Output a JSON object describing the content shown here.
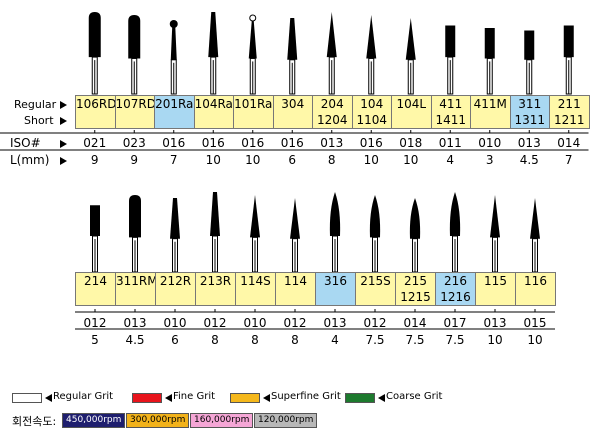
{
  "row_labels": {
    "regular": "Regular",
    "short": "Short",
    "iso": "ISO#",
    "length": "L(mm)"
  },
  "rows": [
    {
      "items": [
        {
          "codes": [
            "106RD"
          ],
          "iso": "021",
          "length": 9,
          "highlight": false
        },
        {
          "codes": [
            "107RD"
          ],
          "iso": "023",
          "length": 9,
          "highlight": false
        },
        {
          "codes": [
            "201Ra"
          ],
          "iso": "016",
          "length": 7,
          "highlight": true
        },
        {
          "codes": [
            "104Ra"
          ],
          "iso": "016",
          "length": 10,
          "highlight": false
        },
        {
          "codes": [
            "101Ra"
          ],
          "iso": "016",
          "length": 10,
          "highlight": false
        },
        {
          "codes": [
            "304"
          ],
          "iso": "016",
          "length": 6,
          "highlight": false
        },
        {
          "codes": [
            "204",
            "1204"
          ],
          "iso": "013",
          "length": 8,
          "highlight": false
        },
        {
          "codes": [
            "104",
            "1104"
          ],
          "iso": "016",
          "length": 10,
          "highlight": false
        },
        {
          "codes": [
            "104L"
          ],
          "iso": "018",
          "length": 10,
          "highlight": false
        },
        {
          "codes": [
            "411",
            "1411"
          ],
          "iso": "011",
          "length": 4,
          "highlight": false
        },
        {
          "codes": [
            "411M"
          ],
          "iso": "010",
          "length": 3,
          "highlight": false
        },
        {
          "codes": [
            "311",
            "1311"
          ],
          "iso": "013",
          "length": 4.5,
          "highlight": true
        },
        {
          "codes": [
            "211",
            "1211"
          ],
          "iso": "014",
          "length": 7,
          "highlight": false
        }
      ]
    },
    {
      "items": [
        {
          "codes": [
            "214"
          ],
          "iso": "012",
          "length": 5,
          "highlight": false
        },
        {
          "codes": [
            "311RM"
          ],
          "iso": "013",
          "length": 4.5,
          "highlight": false
        },
        {
          "codes": [
            "212R"
          ],
          "iso": "010",
          "length": 6,
          "highlight": false
        },
        {
          "codes": [
            "213R"
          ],
          "iso": "012",
          "length": 8,
          "highlight": false
        },
        {
          "codes": [
            "114S"
          ],
          "iso": "010",
          "length": 8,
          "highlight": false
        },
        {
          "codes": [
            "114"
          ],
          "iso": "012",
          "length": 8,
          "highlight": false
        },
        {
          "codes": [
            "316"
          ],
          "iso": "013",
          "length": 4,
          "highlight": true
        },
        {
          "codes": [
            "215S"
          ],
          "iso": "012",
          "length": 7.5,
          "highlight": false
        },
        {
          "codes": [
            "215",
            "1215"
          ],
          "iso": "014",
          "length": 7.5,
          "highlight": false
        },
        {
          "codes": [
            "216",
            "1216"
          ],
          "iso": "017",
          "length": 7.5,
          "highlight": true
        },
        {
          "codes": [
            "115"
          ],
          "iso": "013",
          "length": 10,
          "highlight": false
        },
        {
          "codes": [
            "116"
          ],
          "iso": "015",
          "length": 10,
          "highlight": false
        }
      ]
    }
  ],
  "legend": [
    {
      "label": "Regular Grit",
      "color": "#ffffff"
    },
    {
      "label": "Fine Grit",
      "color": "#e8141c"
    },
    {
      "label": "Superfine Grit",
      "color": "#f5b81c"
    },
    {
      "label": "Coarse Grit",
      "color": "#1d7a2e"
    }
  ],
  "speed": {
    "label": "회전속도:",
    "items": [
      {
        "label": "450,000rpm",
        "color": "#1e1e6e",
        "text_color": "#ffffff"
      },
      {
        "label": "300,000rpm",
        "color": "#f2b21a",
        "text_color": "#000000"
      },
      {
        "label": "160,000rpm",
        "color": "#f5a6d6",
        "text_color": "#000000"
      },
      {
        "label": "120,000rpm",
        "color": "#b8b8b8",
        "text_color": "#000000"
      }
    ]
  }
}
